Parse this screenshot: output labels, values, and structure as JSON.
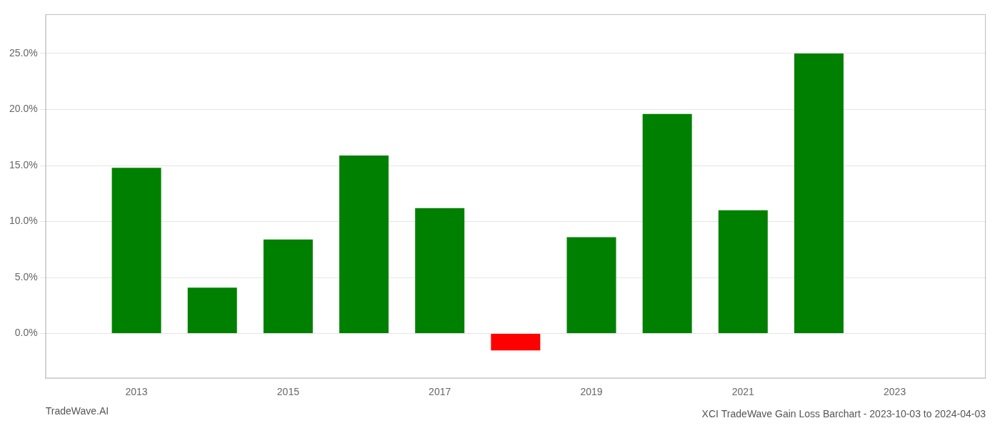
{
  "chart_data": {
    "type": "bar",
    "title": "XCI TradeWave Gain Loss Barchart - 2023-10-03 to 2024-04-03",
    "annotations": [
      "TradeWave.AI"
    ],
    "x": [
      2013,
      2014,
      2015,
      2016,
      2017,
      2018,
      2019,
      2020,
      2021,
      2022
    ],
    "values": [
      0.148,
      0.041,
      0.084,
      0.159,
      0.112,
      -0.015,
      0.086,
      0.196,
      0.11,
      0.25
    ],
    "colors": [
      "#008000",
      "#008000",
      "#008000",
      "#008000",
      "#008000",
      "#ff0000",
      "#008000",
      "#008000",
      "#008000",
      "#008000"
    ],
    "xlim": [
      2011.8,
      2024.2
    ],
    "xticks": [
      2013,
      2015,
      2017,
      2019,
      2021,
      2023
    ],
    "ylim": [
      -0.04,
      0.285
    ],
    "yticks": [
      {
        "value": 0.0,
        "label": "0.0%"
      },
      {
        "value": 0.05,
        "label": "5.0%"
      },
      {
        "value": 0.1,
        "label": "10.0%"
      },
      {
        "value": 0.15,
        "label": "15.0%"
      },
      {
        "value": 0.2,
        "label": "20.0%"
      },
      {
        "value": 0.25,
        "label": "25.0%"
      }
    ],
    "grid": true
  }
}
